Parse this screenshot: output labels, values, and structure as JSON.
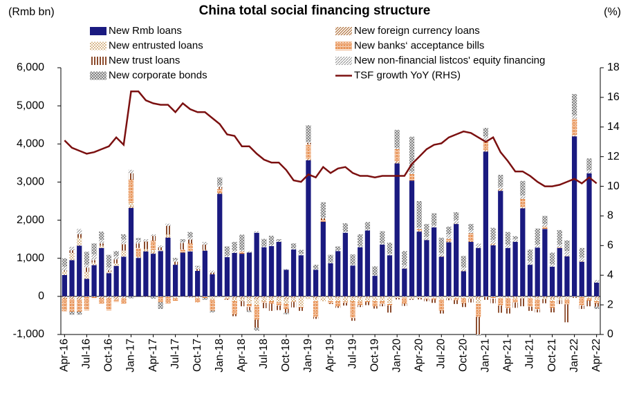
{
  "chart_data": {
    "type": "bar",
    "stacked": true,
    "title": "China total social financing structure",
    "y_label": "(Rmb bn)",
    "y2_label": "(%)",
    "categories": [
      "Apr-16",
      null,
      null,
      "Jul-16",
      null,
      null,
      "Oct-16",
      null,
      null,
      "Jan-17",
      null,
      null,
      "Apr-17",
      null,
      null,
      "Jul-17",
      null,
      null,
      "Oct-17",
      null,
      null,
      "Jan-18",
      null,
      null,
      "Apr-18",
      null,
      null,
      "Jul-18",
      null,
      null,
      "Oct-18",
      null,
      null,
      "Jan-19",
      null,
      null,
      "Apr-19",
      null,
      null,
      "Jul-19",
      null,
      null,
      "Oct-19",
      null,
      null,
      "Jan-20",
      null,
      null,
      "Apr-20",
      null,
      null,
      "Jul-20",
      null,
      null,
      "Oct-20",
      null,
      null,
      "Jan-21",
      null,
      null,
      "Apr-21",
      null,
      null,
      "Jul-21",
      null,
      null,
      "Oct-21",
      null,
      null,
      "Jan-22",
      null,
      null,
      "Apr-22"
    ],
    "ylim": [
      -1000,
      6000
    ],
    "yticks": [
      {
        "value": -1000,
        "label": "-1,000"
      },
      0,
      {
        "value": 1000,
        "label": "1,000"
      },
      {
        "value": 2000,
        "label": "2,000"
      },
      {
        "value": 3000,
        "label": "3,000"
      },
      {
        "value": 4000,
        "label": "4,000"
      },
      {
        "value": 5000,
        "label": "5,000"
      },
      {
        "value": 6000,
        "label": "6,000"
      }
    ],
    "y2lim": [
      0,
      18
    ],
    "y2ticks": [
      0,
      2,
      4,
      6,
      8,
      10,
      12,
      14,
      16,
      18
    ],
    "grid": false,
    "series": [
      {
        "name": "New Rmb loans",
        "color": "#1a1a80",
        "values": [
          560,
          950,
          1330,
          460,
          820,
          1270,
          610,
          800,
          1040,
          2320,
          1010,
          1180,
          1120,
          1190,
          1540,
          830,
          1150,
          1180,
          670,
          1200,
          580,
          2690,
          1030,
          1140,
          1120,
          1150,
          1670,
          1290,
          1320,
          1430,
          700,
          1230,
          1080,
          3570,
          700,
          1960,
          870,
          1190,
          1670,
          810,
          1290,
          1730,
          540,
          1360,
          1080,
          3490,
          730,
          3040,
          1700,
          1480,
          1810,
          1040,
          1420,
          1900,
          660,
          1430,
          1270,
          3800,
          1340,
          2770,
          1270,
          1430,
          2310,
          830,
          1280,
          1770,
          780,
          1270,
          1050,
          4200,
          910,
          3230,
          360
        ]
      },
      {
        "name": "New foreign currency loans",
        "color": "#b0703a",
        "values": [
          -60,
          -70,
          -90,
          -10,
          -20,
          -60,
          -50,
          -80,
          -40,
          50,
          20,
          30,
          50,
          -10,
          30,
          -10,
          -10,
          -30,
          -20,
          20,
          0,
          30,
          -10,
          -50,
          -60,
          -40,
          -80,
          -40,
          -40,
          -40,
          -80,
          -40,
          -20,
          40,
          -60,
          0,
          -20,
          -40,
          -20,
          -40,
          -50,
          -30,
          -10,
          -20,
          -5,
          50,
          10,
          -10,
          20,
          10,
          -10,
          20,
          30,
          10,
          20,
          20,
          -60,
          30,
          50,
          50,
          -20,
          -20,
          30,
          -20,
          -40,
          -30,
          -60,
          -50,
          10,
          20,
          20,
          -10,
          -50
        ]
      },
      {
        "name": "New entrusted loans",
        "color": "#d9b88c",
        "values": [
          100,
          190,
          210,
          180,
          70,
          60,
          30,
          70,
          160,
          90,
          10,
          30,
          50,
          20,
          50,
          -40,
          10,
          20,
          -20,
          -10,
          -90,
          -30,
          -40,
          -80,
          -60,
          -150,
          -160,
          -100,
          -90,
          -120,
          -120,
          -100,
          -240,
          -70,
          -50,
          -130,
          -90,
          -80,
          -120,
          -90,
          -90,
          -90,
          -110,
          -100,
          -180,
          -40,
          -30,
          -60,
          -40,
          -40,
          -30,
          -80,
          -50,
          -60,
          -50,
          -60,
          -120,
          -20,
          -20,
          -40,
          -20,
          -50,
          -50,
          -20,
          -40,
          -40,
          -60,
          -50,
          -80,
          -20,
          -20,
          -40,
          -70
        ]
      },
      {
        "name": "New banks‘ acceptance bills",
        "color": "#e07020",
        "values": [
          -330,
          -330,
          -310,
          -350,
          -40,
          -130,
          -310,
          -60,
          -160,
          600,
          230,
          -10,
          240,
          -140,
          -180,
          -70,
          70,
          190,
          -120,
          -30,
          -280,
          100,
          -20,
          -340,
          50,
          -90,
          -370,
          -30,
          -60,
          -80,
          -130,
          -10,
          -30,
          380,
          -430,
          50,
          -70,
          -140,
          -30,
          -440,
          -90,
          -30,
          -140,
          -80,
          -50,
          320,
          -160,
          170,
          40,
          -30,
          -40,
          -290,
          60,
          -40,
          -130,
          200,
          -360,
          270,
          -40,
          -200,
          -270,
          -90,
          220,
          -230,
          -260,
          50,
          -180,
          10,
          -130,
          430,
          -220,
          -60,
          -60
        ]
      },
      {
        "name": "New trust loans",
        "color": "#8b4a2b",
        "values": [
          20,
          70,
          90,
          110,
          60,
          60,
          40,
          100,
          170,
          170,
          120,
          200,
          130,
          80,
          230,
          80,
          170,
          100,
          50,
          140,
          40,
          50,
          -20,
          -50,
          -140,
          -90,
          -210,
          -140,
          -190,
          -120,
          -100,
          -140,
          -90,
          40,
          -50,
          40,
          -20,
          -40,
          -70,
          -70,
          -50,
          -80,
          -60,
          -60,
          -190,
          -40,
          -60,
          -20,
          -40,
          -60,
          -90,
          -80,
          -50,
          -100,
          -100,
          -100,
          -460,
          -70,
          -120,
          -190,
          -140,
          -140,
          -210,
          -110,
          -80,
          -110,
          -120,
          -100,
          -470,
          -20,
          -90,
          -150,
          -90
        ]
      },
      {
        "name": "New non-financial listcos' equity financing",
        "color": "#8c8c8c",
        "values": [
          100,
          90,
          140,
          80,
          150,
          90,
          80,
          90,
          120,
          90,
          90,
          60,
          40,
          50,
          60,
          50,
          40,
          60,
          50,
          70,
          60,
          50,
          40,
          60,
          50,
          40,
          40,
          20,
          40,
          30,
          20,
          30,
          40,
          30,
          20,
          20,
          20,
          20,
          30,
          20,
          20,
          30,
          20,
          30,
          40,
          40,
          80,
          60,
          50,
          70,
          60,
          80,
          120,
          100,
          80,
          90,
          120,
          100,
          90,
          70,
          90,
          80,
          90,
          100,
          80,
          80,
          70,
          80,
          130,
          100,
          90,
          80,
          70
        ]
      },
      {
        "name": "New corporate bonds",
        "color": "#7a7a7a",
        "values": [
          220,
          -80,
          -80,
          340,
          290,
          220,
          330,
          130,
          140,
          -50,
          50,
          -10,
          -60,
          -180,
          0,
          50,
          60,
          140,
          30,
          -50,
          -50,
          200,
          240,
          230,
          400,
          -40,
          -80,
          200,
          230,
          40,
          -40,
          130,
          100,
          430,
          110,
          400,
          200,
          100,
          220,
          270,
          320,
          190,
          230,
          320,
          290,
          470,
          370,
          920,
          690,
          340,
          310,
          400,
          200,
          200,
          300,
          160,
          -30,
          220,
          320,
          300,
          330,
          70,
          380,
          300,
          420,
          210,
          300,
          380,
          280,
          560,
          250,
          310,
          -60
        ]
      },
      {
        "name": "TSF growth YoY (RHS)",
        "type": "line",
        "axis": "y2",
        "color": "#7b1010",
        "values": [
          13.1,
          12.6,
          12.4,
          12.2,
          12.3,
          12.5,
          12.7,
          13.3,
          12.8,
          16.4,
          16.4,
          15.8,
          15.6,
          15.5,
          15.5,
          15.0,
          15.6,
          15.2,
          15.0,
          15.0,
          14.6,
          14.2,
          13.5,
          13.4,
          12.7,
          12.7,
          12.2,
          11.8,
          11.6,
          11.6,
          11.1,
          10.4,
          10.3,
          10.8,
          10.6,
          11.3,
          10.9,
          11.2,
          11.3,
          10.9,
          10.7,
          10.7,
          10.6,
          10.7,
          10.7,
          10.7,
          10.7,
          11.5,
          12.0,
          12.5,
          12.8,
          12.9,
          13.3,
          13.5,
          13.7,
          13.6,
          13.3,
          13.0,
          13.3,
          12.3,
          11.7,
          11.0,
          11.0,
          10.7,
          10.3,
          10.0,
          10.0,
          10.1,
          10.3,
          10.5,
          10.2,
          10.6,
          10.2
        ]
      }
    ]
  }
}
